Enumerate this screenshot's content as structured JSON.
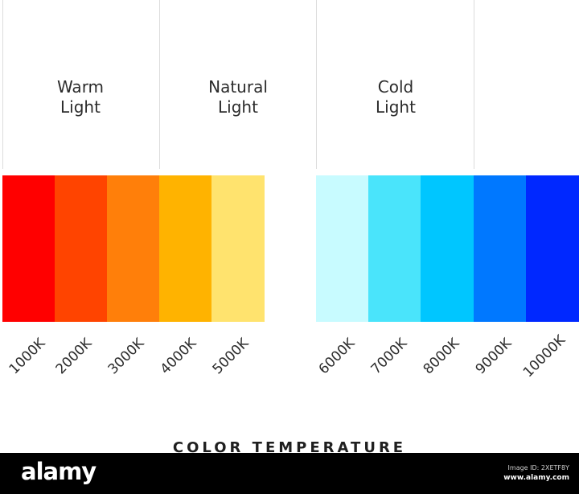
{
  "headings": {
    "warm": "Warm\nLight",
    "natural": "Natural\nLight",
    "cold": "Cold\nLight"
  },
  "swatches": [
    {
      "label": "1000K",
      "color": "#ff0000"
    },
    {
      "label": "2000K",
      "color": "#ff4400"
    },
    {
      "label": "3000K",
      "color": "#ff7f0a"
    },
    {
      "label": "4000K",
      "color": "#ffb300"
    },
    {
      "label": "5000K",
      "color": "#ffe36e"
    },
    {
      "label": "6000K",
      "color": "#c8fbff"
    },
    {
      "label": "7000K",
      "color": "#4ae4fb"
    },
    {
      "label": "8000K",
      "color": "#00c6ff"
    },
    {
      "label": "9000K",
      "color": "#0078ff"
    },
    {
      "label": "10000K",
      "color": "#0028ff"
    }
  ],
  "caption": "COLOR TEMPERATURE",
  "footer": {
    "logo": "alamy",
    "image_id": "Image ID: 2XETF8Y",
    "site": "www.alamy.com"
  }
}
